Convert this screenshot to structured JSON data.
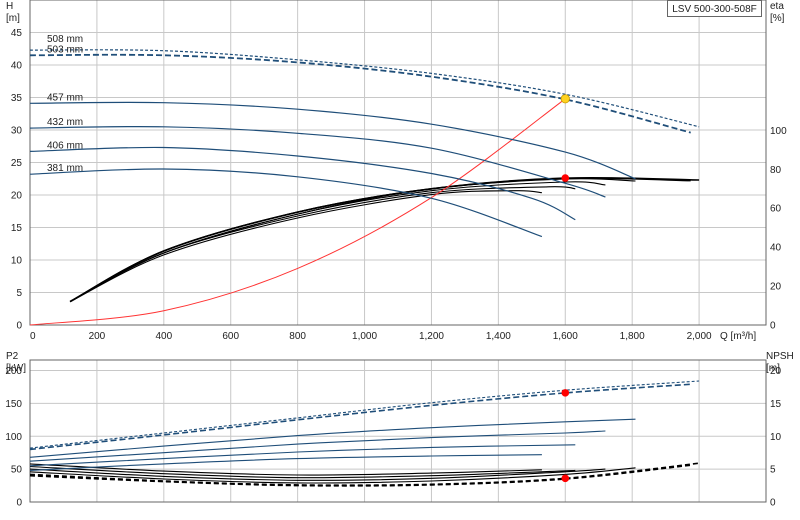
{
  "chart_data": [
    {
      "type": "line",
      "panel": "top",
      "title": "LSV 500-300-508F",
      "ylabel_left": "H",
      "ylabel_left_unit": "[m]",
      "ylabel_right": "eta",
      "ylabel_right_unit": "[%]",
      "xlabel": "Q [m³/h]",
      "xlim": [
        0,
        2200
      ],
      "ylim_left": [
        0,
        50
      ],
      "ylim_right": [
        0,
        167
      ],
      "x_ticks": [
        "0",
        "200",
        "400",
        "600",
        "800",
        "1,000",
        "1,200",
        "1,400",
        "1,600",
        "1,800",
        "2,000"
      ],
      "y_ticks_left": [
        "0",
        "5",
        "10",
        "15",
        "20",
        "25",
        "30",
        "35",
        "40",
        "45"
      ],
      "y_ticks_right": [
        "0",
        "20",
        "40",
        "60",
        "80",
        "100"
      ],
      "grid": true,
      "head_curves": [
        {
          "name": "508 mm",
          "color": "#1f4e79",
          "x": [
            0,
            400,
            800,
            1200,
            1600,
            2000
          ],
          "y": [
            42.3,
            42.2,
            40.8,
            38.7,
            35.5,
            30.5
          ]
        },
        {
          "name": "503 mm",
          "color": "#1f4e79",
          "x": [
            0,
            400,
            800,
            1200,
            1600,
            1975
          ],
          "y": [
            41.5,
            41.5,
            40.4,
            38.2,
            34.7,
            29.6
          ]
        },
        {
          "name": "457 mm",
          "color": "#1f4e79",
          "x": [
            0,
            400,
            800,
            1200,
            1600,
            1810
          ],
          "y": [
            34.1,
            34.2,
            33.2,
            30.9,
            26.6,
            22.5
          ]
        },
        {
          "name": "432 mm",
          "color": "#1f4e79",
          "x": [
            0,
            400,
            800,
            1200,
            1600,
            1720
          ],
          "y": [
            30.3,
            30.5,
            29.5,
            27.2,
            21.8,
            19.7
          ]
        },
        {
          "name": "406 mm",
          "color": "#1f4e79",
          "x": [
            0,
            400,
            800,
            1200,
            1500,
            1630
          ],
          "y": [
            26.7,
            27.3,
            26.0,
            23.3,
            19.5,
            16.2
          ]
        },
        {
          "name": "381 mm",
          "color": "#1f4e79",
          "x": [
            0,
            400,
            800,
            1200,
            1530
          ],
          "y": [
            23.2,
            24.0,
            22.8,
            19.5,
            13.6
          ]
        }
      ],
      "efficiency_curves": [
        {
          "color": "#000000",
          "x": [
            120,
            400,
            800,
            1200,
            1600,
            2000
          ],
          "y": [
            12,
            38,
            58,
            70,
            75.5,
            74.5
          ]
        },
        {
          "color": "#000000",
          "x": [
            120,
            400,
            800,
            1200,
            1600,
            1975
          ],
          "y": [
            12,
            38,
            58,
            70,
            75.3,
            74.2
          ]
        },
        {
          "color": "#000000",
          "x": [
            120,
            400,
            800,
            1200,
            1600,
            1810
          ],
          "y": [
            12,
            37,
            57,
            70,
            75.0,
            74.0
          ]
        },
        {
          "color": "#000000",
          "x": [
            120,
            400,
            800,
            1200,
            1600,
            1720
          ],
          "y": [
            12,
            37,
            57,
            69,
            73.5,
            72.0
          ]
        },
        {
          "color": "#000000",
          "x": [
            120,
            400,
            800,
            1200,
            1550,
            1630
          ],
          "y": [
            12,
            37,
            56,
            68,
            71.0,
            70.0
          ]
        },
        {
          "color": "#000000",
          "x": [
            120,
            400,
            800,
            1200,
            1450,
            1530
          ],
          "y": [
            12,
            36,
            55,
            67,
            69.0,
            68.0
          ]
        }
      ],
      "system_curve": {
        "color": "#ff3333",
        "x": [
          0,
          400,
          800,
          1200,
          1600
        ],
        "y": [
          0,
          2.2,
          8.7,
          19.6,
          34.8
        ]
      },
      "duty_point": {
        "x": 1600,
        "y": 34.8,
        "color": "#ffd21f"
      },
      "eta_point": {
        "x": 1600,
        "y": 75.5,
        "color": "#ff0000"
      }
    },
    {
      "type": "line",
      "panel": "bottom",
      "ylabel_left": "P2",
      "ylabel_left_unit": "[kW]",
      "ylabel_right": "NPSH",
      "ylabel_right_unit": "[m]",
      "xlim": [
        0,
        2200
      ],
      "ylim_left": [
        0,
        216
      ],
      "ylim_right": [
        0,
        21.6
      ],
      "y_ticks_left": [
        "0",
        "50",
        "100",
        "150",
        "200"
      ],
      "y_ticks_right": [
        "0",
        "5",
        "10",
        "15",
        "20"
      ],
      "grid": true,
      "power_curves": [
        {
          "color": "#1f4e79",
          "x": [
            0,
            400,
            800,
            1200,
            1600,
            2000
          ],
          "y": [
            82,
            105,
            128,
            151,
            170,
            184
          ]
        },
        {
          "color": "#1f4e79",
          "x": [
            0,
            400,
            800,
            1200,
            1600,
            1975
          ],
          "y": [
            80,
            102,
            125,
            147,
            166,
            179
          ]
        },
        {
          "color": "#1f4e79",
          "x": [
            0,
            400,
            800,
            1200,
            1600,
            1810
          ],
          "y": [
            68,
            85,
            101,
            113,
            122,
            126
          ]
        },
        {
          "color": "#1f4e79",
          "x": [
            0,
            400,
            800,
            1200,
            1600,
            1720
          ],
          "y": [
            62,
            75,
            88,
            98,
            105,
            108
          ]
        },
        {
          "color": "#1f4e79",
          "x": [
            0,
            400,
            800,
            1200,
            1630
          ],
          "y": [
            55,
            66,
            76,
            83,
            87
          ]
        },
        {
          "color": "#1f4e79",
          "x": [
            0,
            400,
            800,
            1200,
            1530
          ],
          "y": [
            48,
            58,
            66,
            70,
            72
          ]
        }
      ],
      "npsh_curves": [
        {
          "color": "#000000",
          "x": [
            0,
            400,
            800,
            1200,
            1600,
            2000
          ],
          "y": [
            4.2,
            3.2,
            2.6,
            2.7,
            3.6,
            5.9
          ]
        },
        {
          "color": "#000000",
          "x": [
            0,
            400,
            800,
            1200,
            1600,
            1975
          ],
          "y": [
            4.0,
            3.1,
            2.5,
            2.6,
            3.5,
            5.6
          ]
        },
        {
          "color": "#000000",
          "x": [
            0,
            400,
            800,
            1200,
            1600,
            1810
          ],
          "y": [
            4.6,
            3.5,
            2.9,
            3.2,
            4.2,
            5.2
          ]
        },
        {
          "color": "#000000",
          "x": [
            0,
            400,
            800,
            1200,
            1600,
            1720
          ],
          "y": [
            5.0,
            3.9,
            3.3,
            3.6,
            4.6,
            5.0
          ]
        },
        {
          "color": "#000000",
          "x": [
            0,
            400,
            800,
            1200,
            1630
          ],
          "y": [
            5.4,
            4.3,
            3.7,
            4.0,
            4.8
          ]
        },
        {
          "color": "#000000",
          "x": [
            0,
            400,
            800,
            1200,
            1530
          ],
          "y": [
            5.8,
            4.7,
            4.1,
            4.4,
            4.9
          ]
        }
      ],
      "power_point": {
        "x": 1600,
        "y": 166,
        "color": "#ff0000"
      },
      "npsh_point": {
        "x": 1600,
        "y": 3.6,
        "color": "#ff0000"
      }
    }
  ]
}
